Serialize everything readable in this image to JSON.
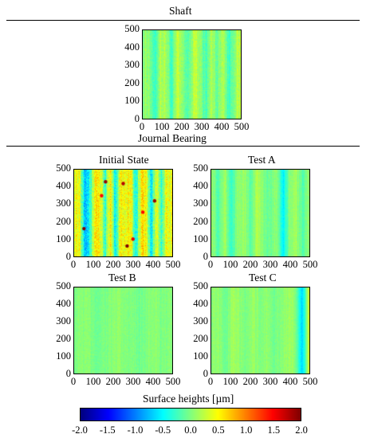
{
  "sections": {
    "shaft_title": "Shaft",
    "bearing_title": "Journal Bearing"
  },
  "colorbar": {
    "label": "Surface heights [µm]",
    "ticks": [
      "-2.0",
      "-1.5",
      "-1.0",
      "-0.5",
      "0.0",
      "0.5",
      "1.0",
      "1.5",
      "2.0"
    ],
    "range": [
      -2.0,
      2.0
    ],
    "colormap": "jet"
  },
  "chart_data": [
    {
      "type": "heatmap",
      "title": "Shaft",
      "x_ticks": [
        "0",
        "100",
        "200",
        "300",
        "400",
        "500"
      ],
      "y_ticks": [
        "0",
        "100",
        "200",
        "300",
        "400",
        "500"
      ],
      "xlim": [
        0,
        500
      ],
      "ylim": [
        0,
        500
      ],
      "z_range": [
        -2.0,
        2.0
      ],
      "stripe_profile": [
        0.05,
        0.1,
        -0.35,
        0.2,
        0.15,
        -0.3,
        0.25,
        0.0,
        -0.2,
        0.3,
        0.05,
        -0.25,
        0.2,
        -0.1,
        0.25,
        -0.3,
        0.1,
        0.2
      ],
      "noise": 0.12,
      "spots": []
    },
    {
      "type": "heatmap",
      "title": "Initial State",
      "x_ticks": [
        "0",
        "100",
        "200",
        "300",
        "400",
        "500"
      ],
      "y_ticks": [
        "0",
        "100",
        "200",
        "300",
        "400",
        "500"
      ],
      "xlim": [
        0,
        500
      ],
      "ylim": [
        0,
        500
      ],
      "z_range": [
        -2.0,
        2.0
      ],
      "stripe_profile": [
        0.55,
        0.45,
        -0.6,
        -0.45,
        0.65,
        0.5,
        -0.3,
        0.55,
        -0.65,
        0.6,
        0.45,
        0.6,
        -0.5,
        0.55,
        0.5,
        -0.55,
        0.45,
        -0.35,
        0.5,
        0.4
      ],
      "noise": 0.25,
      "spots": [
        {
          "x": 50,
          "y": 160,
          "z": 2.0
        },
        {
          "x": 160,
          "y": 430,
          "z": 1.9
        },
        {
          "x": 250,
          "y": 420,
          "z": 1.8
        },
        {
          "x": 270,
          "y": 60,
          "z": 2.0
        },
        {
          "x": 410,
          "y": 320,
          "z": 1.9
        },
        {
          "x": 300,
          "y": 100,
          "z": 1.6
        },
        {
          "x": 350,
          "y": 255,
          "z": 1.5
        },
        {
          "x": 140,
          "y": 350,
          "z": 1.5
        }
      ]
    },
    {
      "type": "heatmap",
      "title": "Test A",
      "x_ticks": [
        "0",
        "100",
        "200",
        "300",
        "400",
        "500"
      ],
      "y_ticks": [
        "0",
        "100",
        "200",
        "300",
        "400",
        "500"
      ],
      "xlim": [
        0,
        500
      ],
      "ylim": [
        0,
        500
      ],
      "z_range": [
        -2.0,
        2.0
      ],
      "stripe_profile": [
        0.1,
        -0.2,
        0.15,
        -0.3,
        0.05,
        0.1,
        -0.15,
        0.2,
        0.0,
        -0.1,
        0.1,
        -0.55,
        0.05,
        0.15,
        -0.2,
        0.1
      ],
      "noise": 0.08,
      "spots": []
    },
    {
      "type": "heatmap",
      "title": "Test B",
      "x_ticks": [
        "0",
        "100",
        "200",
        "300",
        "400",
        "500"
      ],
      "y_ticks": [
        "0",
        "100",
        "200",
        "300",
        "400",
        "500"
      ],
      "xlim": [
        0,
        500
      ],
      "ylim": [
        0,
        500
      ],
      "z_range": [
        -2.0,
        2.0
      ],
      "stripe_profile": [
        0.0,
        0.05,
        -0.05,
        0.0,
        0.05,
        0.0,
        -0.05,
        0.05,
        0.0,
        0.0
      ],
      "noise": 0.07,
      "spots": []
    },
    {
      "type": "heatmap",
      "title": "Test C",
      "x_ticks": [
        "0",
        "100",
        "200",
        "300",
        "400",
        "500"
      ],
      "y_ticks": [
        "0",
        "100",
        "200",
        "300",
        "400",
        "500"
      ],
      "xlim": [
        0,
        500
      ],
      "ylim": [
        0,
        500
      ],
      "z_range": [
        -2.0,
        2.0
      ],
      "stripe_profile": [
        0.05,
        0.1,
        -0.1,
        0.15,
        0.05,
        -0.05,
        0.1,
        0.0,
        0.1,
        -0.05,
        0.05,
        0.1,
        0.05,
        -0.7,
        0.35
      ],
      "noise": 0.07,
      "spots": []
    }
  ]
}
